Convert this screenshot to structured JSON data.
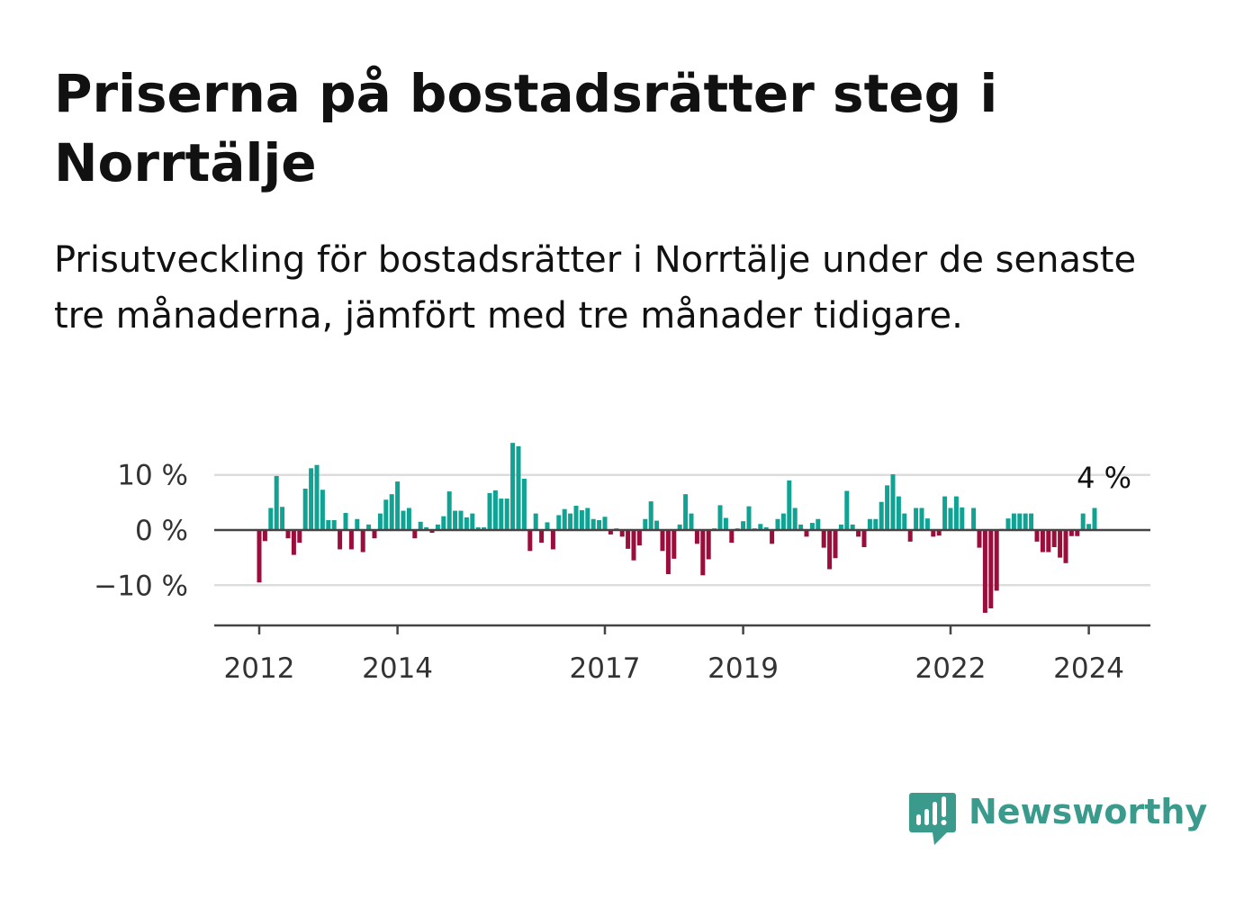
{
  "title": "Priserna på bostadsrätter steg i Norrtälje",
  "subtitle": "Prisutveckling för bostadsrätter i Norrtälje under de senaste tre månaderna, jämfört med tre månader tidigare.",
  "brand": {
    "name": "Newsworthy",
    "icon": "newsworthy-logo-icon",
    "color": "#3a9a8c"
  },
  "colors": {
    "positive": "#10a394",
    "negative": "#9b0e3c",
    "grid": "#dddddd",
    "axis": "#444444"
  },
  "chart_data": {
    "type": "bar",
    "title": "",
    "xlabel": "",
    "ylabel": "",
    "ylim": [
      -17,
      16
    ],
    "y_ticks": [
      10,
      0,
      -10
    ],
    "y_tick_labels": [
      "10 %",
      "0 %",
      "−10 %"
    ],
    "x_ticks": [
      2012,
      2014,
      2017,
      2019,
      2022,
      2024
    ],
    "x_tick_labels": [
      "2012",
      "2014",
      "2017",
      "2019",
      "2022",
      "2024"
    ],
    "grid": true,
    "last_value_label": "4 %",
    "x_start": "2012-01",
    "x_end": "2024-05",
    "series": [
      {
        "unit": "%",
        "values": [
          -9.5,
          -2,
          4,
          9.8,
          4.2,
          -1.5,
          -4.5,
          -2.3,
          7.5,
          11.2,
          11.8,
          7.3,
          1.8,
          1.8,
          -3.5,
          3.1,
          -3.5,
          2,
          -4,
          1,
          -1.5,
          3,
          5.5,
          6.5,
          8.8,
          3.5,
          4,
          -1.5,
          1.5,
          0.5,
          -0.5,
          1,
          2.5,
          7,
          3.5,
          3.5,
          2.3,
          3,
          0.5,
          0.5,
          6.7,
          7.2,
          5.7,
          5.7,
          15.8,
          15.2,
          9.3,
          -3.8,
          3,
          -2.3,
          1.4,
          -3.5,
          2.7,
          3.8,
          3,
          4.4,
          3.6,
          4,
          2,
          1.8,
          2.4,
          -0.8,
          0.3,
          -1.2,
          -3.4,
          -5.5,
          -2.8,
          2,
          5.2,
          1.7,
          -3.8,
          -8,
          -5.2,
          1,
          6.5,
          3,
          -2.5,
          -8.2,
          -5.3,
          0.3,
          4.5,
          2.2,
          -2.3,
          0.3,
          1.6,
          4.3,
          0.3,
          1.1,
          0.5,
          -2.5,
          2,
          3,
          9,
          4,
          1,
          -1.2,
          1.3,
          2,
          -3.2,
          -7.1,
          -5.1,
          1,
          7.1,
          1,
          -1.2,
          -3.1,
          2,
          2,
          5.1,
          8.1,
          10.1,
          6.1,
          3,
          -2.1,
          4,
          4,
          2.1,
          -1.2,
          -1,
          6.1,
          4,
          6.1,
          4.1,
          0.2,
          4,
          -3.2,
          -15,
          -14.2,
          -11,
          0.2,
          2.1,
          3,
          3,
          3,
          3,
          -2.1,
          -4,
          -4,
          -3.1,
          -5,
          -6,
          -1.1,
          -1.1,
          3,
          1.1,
          4
        ]
      }
    ]
  }
}
